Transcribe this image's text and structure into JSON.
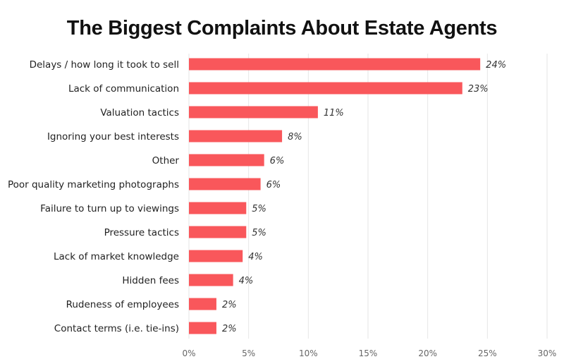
{
  "chart_data": {
    "type": "bar",
    "orientation": "horizontal",
    "title": "The Biggest Complaints About Estate Agents",
    "categories": [
      "Delays / how long it took to sell",
      "Lack of communication",
      "Valuation tactics",
      "Ignoring your best interests",
      "Other",
      "Poor quality marketing photographs",
      "Failure to turn up to viewings",
      "Pressure tactics",
      "Lack of market knowledge",
      "Hidden fees",
      "Rudeness of employees",
      "Contact terms (i.e. tie-ins)"
    ],
    "values": [
      24.4,
      22.9,
      10.8,
      7.8,
      6.3,
      6.0,
      4.8,
      4.8,
      4.5,
      3.7,
      2.3,
      2.3
    ],
    "data_labels": [
      "24%",
      "23%",
      "11%",
      "8%",
      "6%",
      "6%",
      "5%",
      "5%",
      "4%",
      "4%",
      "2%",
      "2%"
    ],
    "xlim": [
      0,
      30
    ],
    "x_ticks": [
      "0%",
      "5%",
      "10%",
      "15%",
      "20%",
      "25%",
      "30%"
    ],
    "xlabel": "",
    "ylabel": "",
    "grid": "vertical",
    "bar_color": "#f9575b"
  }
}
